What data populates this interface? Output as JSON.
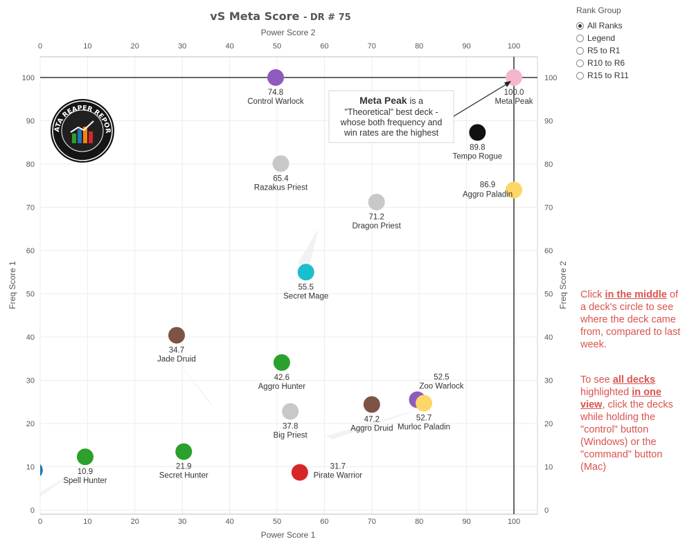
{
  "title": {
    "main": "vS Meta Score",
    "sub": "DR # 75"
  },
  "annotation": {
    "bold": "Meta Peak",
    "rest1": "is a",
    "line2": "\"Theoretical\" best deck -",
    "line3": "whose both frequency and",
    "line4": "win rates are the highest"
  },
  "rank_group": {
    "title": "Rank Group",
    "options": [
      {
        "label": "All Ranks",
        "selected": true
      },
      {
        "label": "Legend",
        "selected": false
      },
      {
        "label": "R5 to R1",
        "selected": false
      },
      {
        "label": "R10 to R6",
        "selected": false
      },
      {
        "label": "R15 to R11",
        "selected": false
      }
    ]
  },
  "notes": {
    "n1_pre": "Click",
    "n1_link": "in the middle",
    "n1_post": "of a deck's circle to see where the deck came from, compared to last week.",
    "n2_pre": "To see",
    "n2_link1": "all decks",
    "n2_mid": "highlighted",
    "n2_link2": "in one view",
    "n2_post": ", click the decks while holding the \"control\" button (Windows) or the \"command\" button (Mac)"
  },
  "logo": {
    "text": "DATA REAPER REPORT",
    "icon": "bar-chart-logo"
  },
  "chart_data": {
    "type": "scatter",
    "xlabel": "Power Score 1",
    "x2label": "Power Score 2",
    "ylabel": "Freq Score 1",
    "y2label": "Freq Score 2",
    "xlim": [
      0,
      105
    ],
    "ylim": [
      0,
      100
    ],
    "xticks": [
      0,
      10,
      20,
      30,
      40,
      50,
      60,
      70,
      80,
      90,
      100
    ],
    "yticks": [
      0,
      10,
      20,
      30,
      40,
      50,
      60,
      70,
      80,
      90,
      100
    ],
    "reference_lines": {
      "x": 100,
      "y": 100
    },
    "points": [
      {
        "name": "Control Warlock",
        "score": "74.8",
        "x": 49.7,
        "y": 100,
        "color": "#8e5bbf"
      },
      {
        "name": "Meta Peak",
        "score": "100.0",
        "x": 100,
        "y": 100,
        "color": "#f4b6cf"
      },
      {
        "name": "Tempo Rogue",
        "score": "89.8",
        "x": 92.3,
        "y": 87.3,
        "color": "#111111"
      },
      {
        "name": "Razakus Priest",
        "score": "65.4",
        "x": 50.8,
        "y": 80.1,
        "color": "#c8c8c8"
      },
      {
        "name": "Aggro Paladin",
        "score": "86.9",
        "x": 100,
        "y": 74,
        "color": "#fcd667",
        "label_left": true
      },
      {
        "name": "Dragon Priest",
        "score": "71.2",
        "x": 71,
        "y": 71.2,
        "color": "#c8c8c8"
      },
      {
        "name": "Secret Mage",
        "score": "55.5",
        "x": 56.1,
        "y": 55,
        "color": "#1bbecf"
      },
      {
        "name": "Jade Druid",
        "score": "34.7",
        "x": 28.8,
        "y": 40.4,
        "color": "#7d5346"
      },
      {
        "name": "Aggro Hunter",
        "score": "42.6",
        "x": 51,
        "y": 34.1,
        "color": "#2ca02c"
      },
      {
        "name": "Zoo Warlock",
        "score": "52.5",
        "x": 79.6,
        "y": 25.5,
        "color": "#8e5bbf",
        "label_above": true
      },
      {
        "name": "Murloc Paladin",
        "score": "52.7",
        "x": 81,
        "y": 24.7,
        "color": "#fcd667"
      },
      {
        "name": "Aggro Druid",
        "score": "47.2",
        "x": 70,
        "y": 24.4,
        "color": "#7d5346"
      },
      {
        "name": "Big Priest",
        "score": "37.8",
        "x": 52.8,
        "y": 22.8,
        "color": "#c8c8c8"
      },
      {
        "name": "Secret Hunter",
        "score": "21.9",
        "x": 30.3,
        "y": 13.5,
        "color": "#2ca02c"
      },
      {
        "name": "Spell Hunter",
        "score": "10.9",
        "x": 9.5,
        "y": 12.3,
        "color": "#2ca02c"
      },
      {
        "name": "Pirate Warrior",
        "score": "31.7",
        "x": 54.8,
        "y": 8.7,
        "color": "#d62728",
        "label_right": true
      },
      {
        "name": "",
        "score": "",
        "x": -1.2,
        "y": 9.2,
        "color": "#1f77b4"
      }
    ]
  }
}
